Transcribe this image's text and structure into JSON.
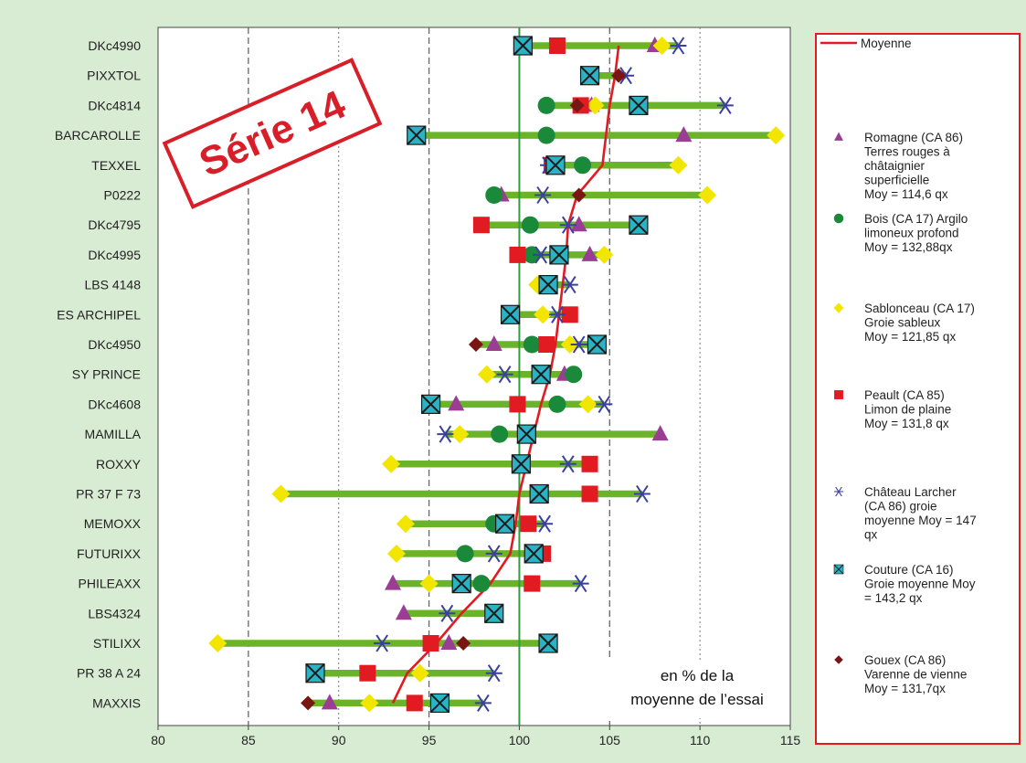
{
  "chart_data": {
    "type": "scatter",
    "title": "",
    "stamp": "Série 14",
    "annotation_lines": [
      "en % de la",
      "moyenne de l’essai"
    ],
    "xlim": [
      80,
      115
    ],
    "xticks": [
      80,
      85,
      90,
      95,
      100,
      105,
      110,
      115
    ],
    "reference_line": 100,
    "varieties": [
      "DKc4990",
      "PIXXTOL",
      "DKc4814",
      "BARCAROLLE",
      "TEXXEL",
      "P0222",
      "DKc4795",
      "DKc4995",
      "LBS 4148",
      "ES ARCHIPEL",
      "DKc4950",
      "SY PRINCE",
      "DKc4608",
      "MAMILLA",
      "ROXXY",
      "PR 37 F 73",
      "MEMOXX",
      "FUTURIXX",
      "PHILEAXX",
      "LBS4324",
      "STILIXX",
      "PR 38 A 24",
      "MAXXIS"
    ],
    "moyenne": [
      105.5,
      105.3,
      105.0,
      104.8,
      104.6,
      103.2,
      102.7,
      102.6,
      102.4,
      102.2,
      102.0,
      101.7,
      101.2,
      100.8,
      100.4,
      100.0,
      99.8,
      99.5,
      98.4,
      96.8,
      95.4,
      93.8,
      93.0
    ],
    "series": [
      {
        "name": "Romagne (CA 86)",
        "desc": [
          "Romagne (CA 86)",
          "Terres rouges à",
          "châtaignier",
          "superficielle",
          "Moy = 114,6 qx"
        ],
        "marker": "triangle",
        "color": "#9b3d95",
        "values": [
          107.5,
          null,
          104.0,
          109.1,
          null,
          99.0,
          103.3,
          103.9,
          null,
          null,
          98.6,
          102.5,
          96.5,
          107.8,
          null,
          null,
          null,
          null,
          93.0,
          93.6,
          96.1,
          null,
          89.5
        ]
      },
      {
        "name": "Bois (CA 17)",
        "desc": [
          "Bois (CA 17) Argilo",
          "limoneux profond",
          "Moy =  132,88qx"
        ],
        "marker": "circle",
        "color": "#1a8a3a",
        "values": [
          null,
          null,
          101.5,
          101.5,
          103.5,
          98.6,
          100.6,
          100.7,
          null,
          null,
          100.7,
          103.0,
          102.1,
          98.9,
          null,
          null,
          98.6,
          97.0,
          97.9,
          null,
          null,
          null,
          null
        ]
      },
      {
        "name": "Sablonceau (CA 17)",
        "desc": [
          "Sablonceau (CA 17)",
          "Groie sableux",
          "Moy = 121,85 qx"
        ],
        "marker": "diamond",
        "color": "#f2e600",
        "values": [
          107.9,
          null,
          104.2,
          114.2,
          108.8,
          110.4,
          null,
          104.7,
          101.0,
          101.3,
          102.8,
          98.2,
          103.8,
          96.7,
          92.9,
          86.8,
          93.7,
          93.2,
          95.0,
          null,
          83.3,
          94.5,
          91.7
        ]
      },
      {
        "name": "Peault (CA 85)",
        "desc": [
          "Peault (CA 85)",
          "Limon de plaine",
          "Moy = 131,8 qx"
        ],
        "marker": "square",
        "color": "#e21b22",
        "values": [
          102.1,
          null,
          103.4,
          null,
          101.8,
          null,
          97.9,
          99.9,
          null,
          102.8,
          101.5,
          null,
          99.9,
          null,
          103.9,
          103.9,
          100.5,
          101.3,
          100.7,
          null,
          95.1,
          91.6,
          94.2
        ]
      },
      {
        "name": "Château Larcher (CA 86)",
        "desc": [
          "Château Larcher",
          "(CA 86) groie",
          "moyenne Moy = 147",
          "qx"
        ],
        "marker": "star",
        "color": "#3b3fa0",
        "values": [
          108.8,
          105.9,
          111.4,
          null,
          101.6,
          101.3,
          102.7,
          101.2,
          102.8,
          102.1,
          103.3,
          99.2,
          104.7,
          95.9,
          102.7,
          106.8,
          101.4,
          98.6,
          103.4,
          96.0,
          92.4,
          98.6,
          98.0
        ]
      },
      {
        "name": "Couture (CA 16)",
        "desc": [
          "Couture (CA 16)",
          "Groie moyenne Moy",
          "= 143,2 qx"
        ],
        "marker": "xsquare",
        "color": "#2ab3c4",
        "values": [
          100.2,
          103.9,
          106.6,
          94.3,
          102.0,
          null,
          106.6,
          102.2,
          101.6,
          99.5,
          104.3,
          101.2,
          95.1,
          100.4,
          100.1,
          101.1,
          99.2,
          100.8,
          96.8,
          98.6,
          101.6,
          88.7,
          95.6
        ]
      },
      {
        "name": "Gouex (CA 86)",
        "desc": [
          "Gouex (CA 86)",
          "Varenne de vienne",
          "Moy =  131,7qx"
        ],
        "marker": "smalldiamond",
        "color": "#7a1515",
        "values": [
          null,
          105.5,
          103.2,
          null,
          null,
          103.3,
          null,
          null,
          null,
          null,
          97.6,
          null,
          null,
          null,
          null,
          null,
          null,
          null,
          null,
          null,
          96.9,
          null,
          88.3
        ]
      }
    ],
    "legend": {
      "line_label": "Moyenne",
      "line_color": "#e21b22",
      "placement": "right"
    }
  }
}
